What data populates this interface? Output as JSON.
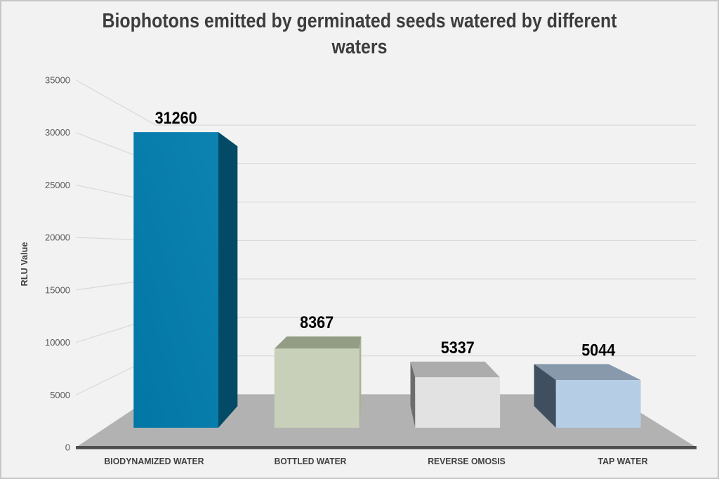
{
  "chart": {
    "title_line1": "Biophotons emitted by germinated seeds watered by different",
    "title_line2": "waters"
  },
  "chart_data": {
    "type": "bar",
    "variant": "3d-column-perspective",
    "title": "Biophotons emitted by germinated seeds watered by different waters",
    "categories": [
      "BIODYNAMIZED WATER",
      "BOTTLED WATER",
      "REVERSE OMOSIS",
      "TAP WATER"
    ],
    "values": [
      31260,
      8367,
      5337,
      5044
    ],
    "xlabel": "",
    "ylabel": "RLU Value",
    "ylim": [
      0,
      35000
    ],
    "yticks": [
      0,
      5000,
      10000,
      15000,
      20000,
      25000,
      30000,
      35000
    ],
    "grid": true,
    "legend": false,
    "data_labels_shown": true,
    "bar_colors": [
      {
        "front": "#0277a5",
        "front2": "#0d83b2",
        "side": "#024a66",
        "top": "#0a6f97"
      },
      {
        "front": "#c8d0ba",
        "side": "#a9b398",
        "top": "#939c85"
      },
      {
        "front": "#e2e2e2",
        "side": "#6d6d6d",
        "top": "#acacac"
      },
      {
        "front": "#b5cde5",
        "side": "#3f4f60",
        "top": "#8799ab"
      }
    ],
    "colors": {
      "background": "#f2f2f2",
      "frame_border": "#c6c6c6",
      "gridline": "#d9d9d9",
      "floor": "#b2b2b2",
      "floor_edge": "#4f4f4f",
      "title_text": "#3d3d3d",
      "tick_text": "#595959",
      "category_text": "#3f3f3f",
      "value_label_text": "#000000"
    }
  }
}
